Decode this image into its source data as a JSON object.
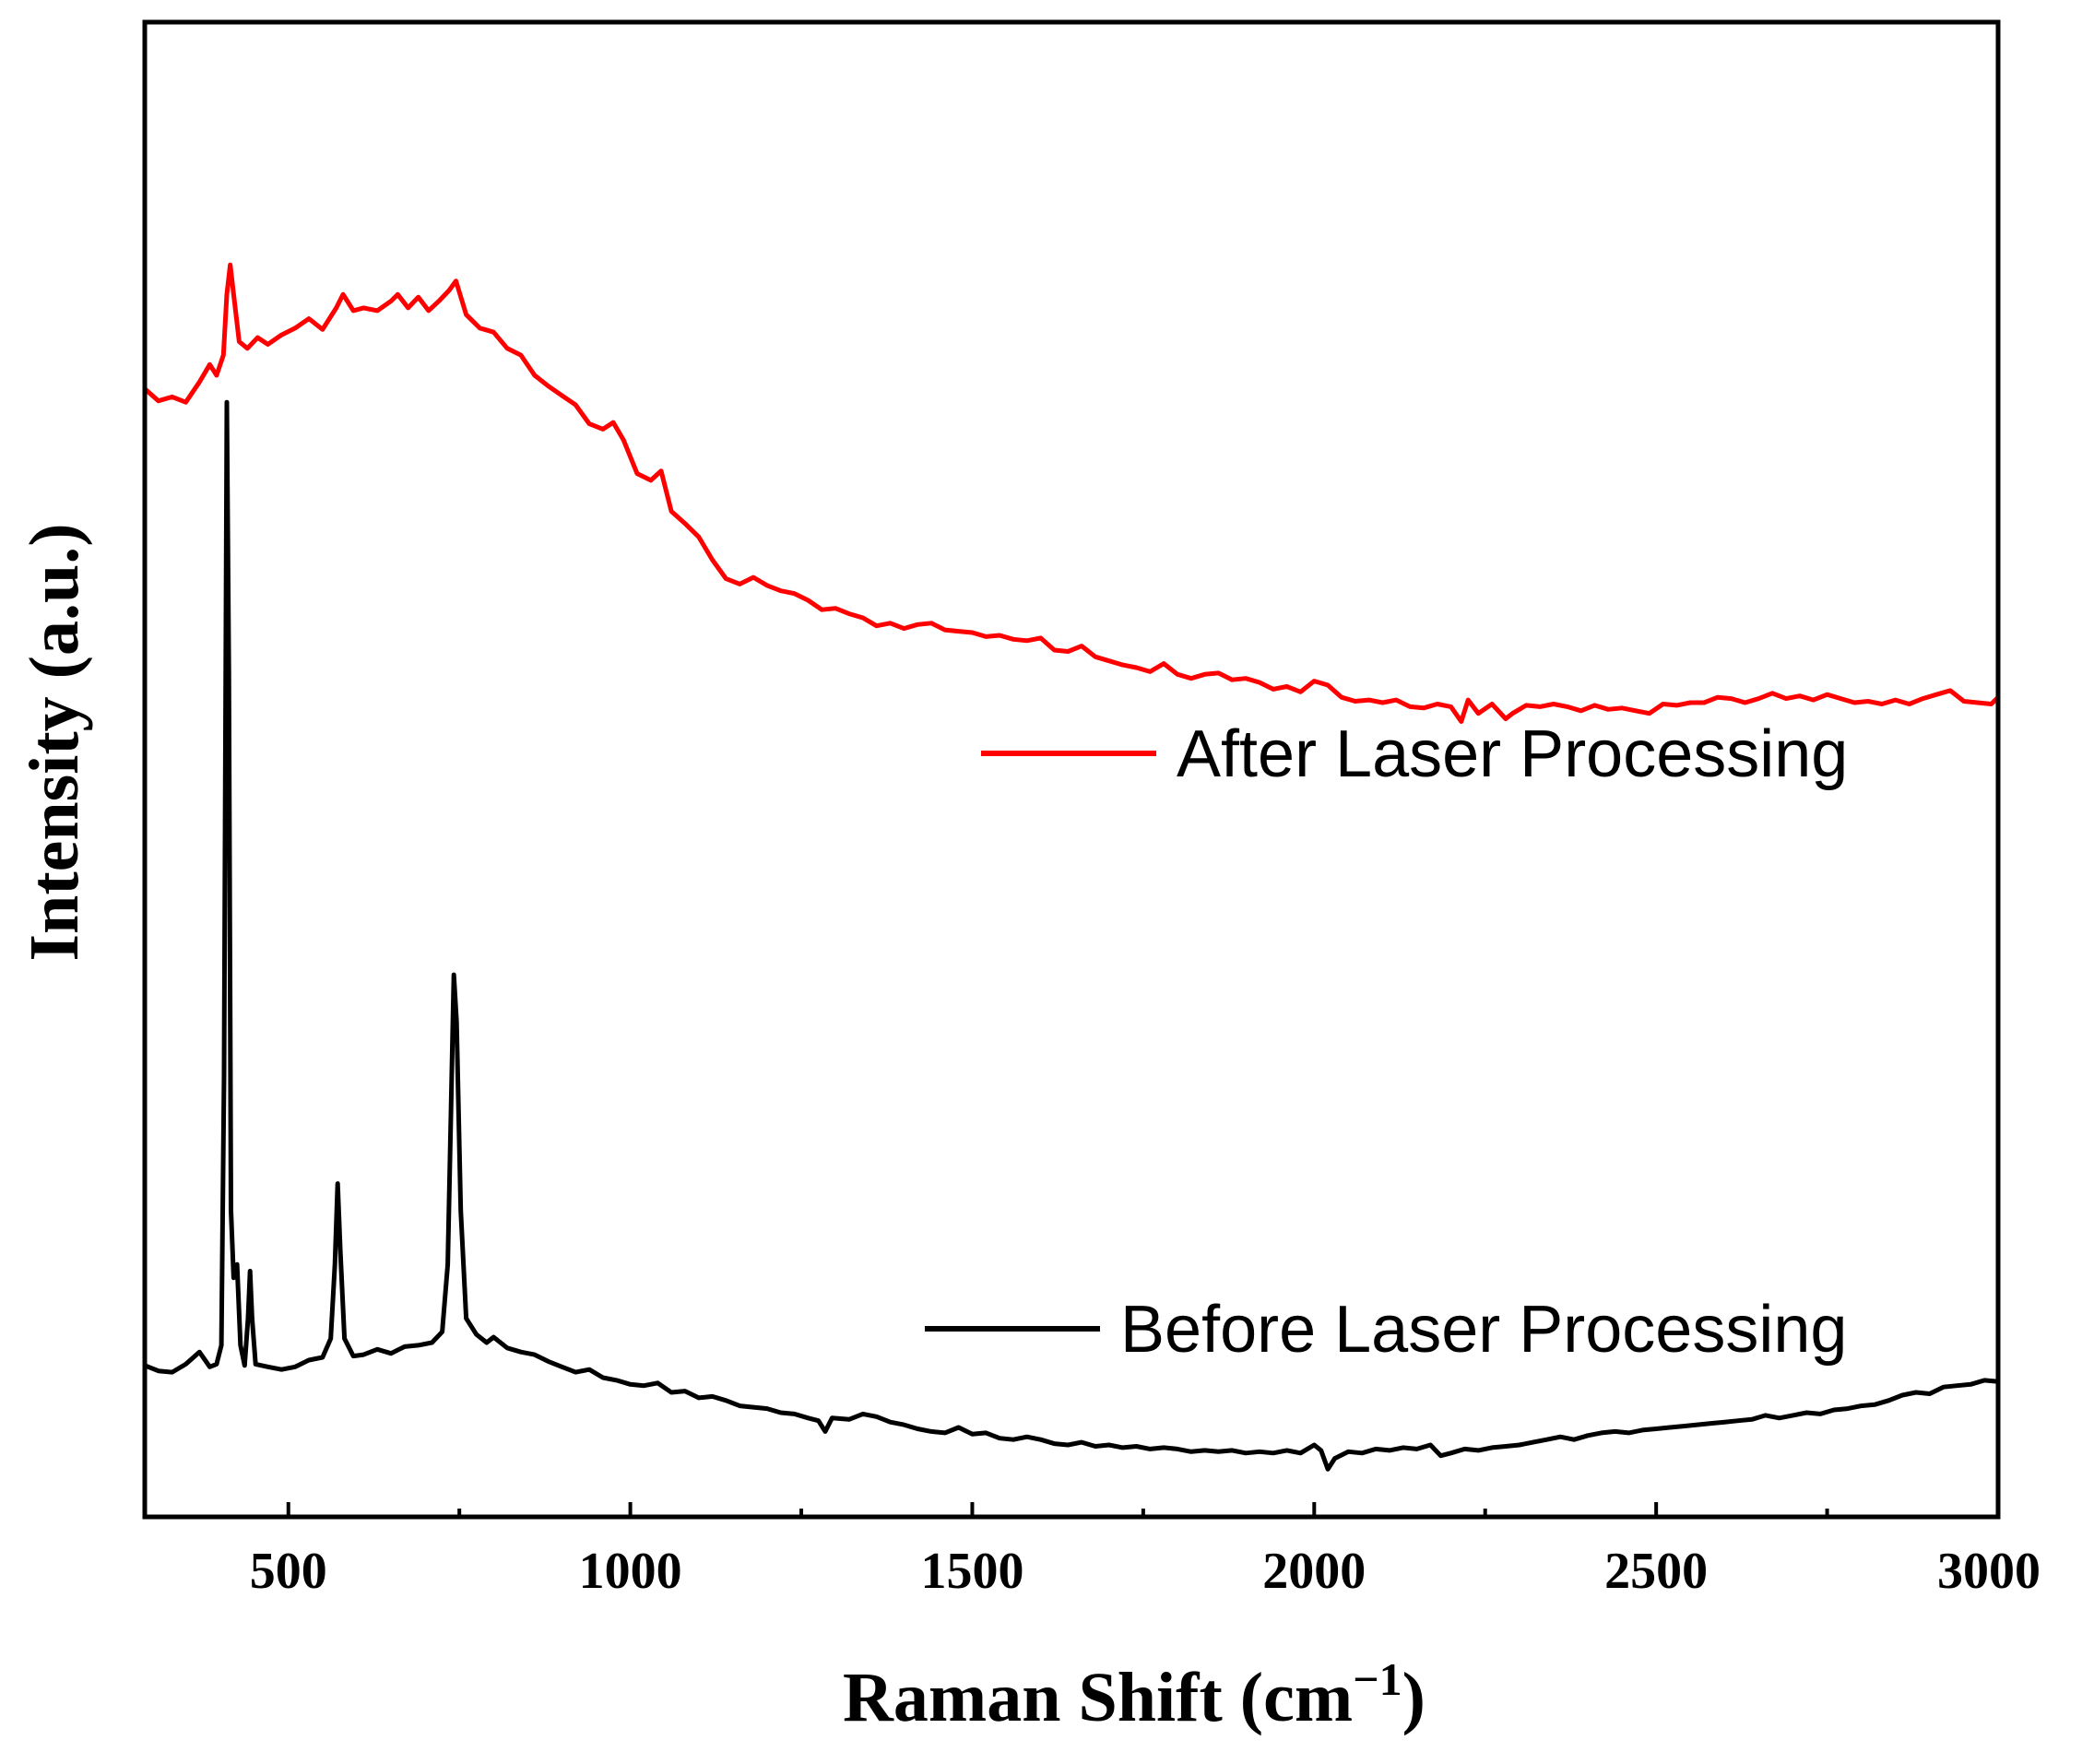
{
  "chart_data": {
    "type": "line",
    "title": "",
    "xlabel": "Raman Shift (cm",
    "xlabel_sup": "−1",
    "xlabel_close": ")",
    "ylabel": "Intensity (a.u.)",
    "xlim": [
      290,
      3000
    ],
    "ylim": [
      0,
      100
    ],
    "xticks": [
      500,
      1000,
      1500,
      2000,
      2500,
      3000
    ],
    "xtick_labels": [
      "500",
      "1000",
      "1500",
      "2000",
      "2500",
      "3000"
    ],
    "minor_xticks": [
      750,
      1250,
      1750,
      2250,
      2750
    ],
    "yticks_shown": false,
    "legend_position": "inside, right of each trace",
    "series": [
      {
        "name": "After Laser Processing",
        "color": "#ff0000",
        "points": [
          [
            290,
            81.0
          ],
          [
            310,
            80.1
          ],
          [
            330,
            80.4
          ],
          [
            350,
            80.0
          ],
          [
            370,
            81.5
          ],
          [
            385,
            82.8
          ],
          [
            395,
            82.0
          ],
          [
            405,
            83.5
          ],
          [
            410,
            88.0
          ],
          [
            415,
            90.2
          ],
          [
            420,
            88.0
          ],
          [
            428,
            84.5
          ],
          [
            440,
            84.0
          ],
          [
            455,
            84.8
          ],
          [
            470,
            84.3
          ],
          [
            490,
            85.0
          ],
          [
            510,
            85.5
          ],
          [
            530,
            86.2
          ],
          [
            550,
            85.4
          ],
          [
            570,
            87.0
          ],
          [
            580,
            88.0
          ],
          [
            595,
            86.8
          ],
          [
            610,
            87.0
          ],
          [
            630,
            86.8
          ],
          [
            650,
            87.5
          ],
          [
            660,
            88.0
          ],
          [
            675,
            87.0
          ],
          [
            690,
            87.8
          ],
          [
            705,
            86.8
          ],
          [
            720,
            87.5
          ],
          [
            735,
            88.3
          ],
          [
            745,
            89.0
          ],
          [
            760,
            86.5
          ],
          [
            780,
            85.5
          ],
          [
            800,
            85.2
          ],
          [
            820,
            84.0
          ],
          [
            840,
            83.5
          ],
          [
            860,
            82.0
          ],
          [
            880,
            81.2
          ],
          [
            900,
            80.5
          ],
          [
            920,
            79.8
          ],
          [
            940,
            78.4
          ],
          [
            960,
            78.0
          ],
          [
            975,
            78.5
          ],
          [
            990,
            77.2
          ],
          [
            1010,
            74.7
          ],
          [
            1030,
            74.2
          ],
          [
            1045,
            74.9
          ],
          [
            1060,
            71.9
          ],
          [
            1080,
            71.0
          ],
          [
            1100,
            70.0
          ],
          [
            1120,
            68.3
          ],
          [
            1140,
            66.9
          ],
          [
            1160,
            66.5
          ],
          [
            1180,
            67.0
          ],
          [
            1200,
            66.4
          ],
          [
            1220,
            66.0
          ],
          [
            1240,
            65.8
          ],
          [
            1260,
            65.3
          ],
          [
            1280,
            64.6
          ],
          [
            1300,
            64.7
          ],
          [
            1320,
            64.3
          ],
          [
            1340,
            64.0
          ],
          [
            1360,
            63.4
          ],
          [
            1380,
            63.6
          ],
          [
            1400,
            63.2
          ],
          [
            1420,
            63.5
          ],
          [
            1440,
            63.6
          ],
          [
            1460,
            63.1
          ],
          [
            1480,
            63.0
          ],
          [
            1500,
            62.9
          ],
          [
            1520,
            62.6
          ],
          [
            1540,
            62.7
          ],
          [
            1560,
            62.4
          ],
          [
            1580,
            62.3
          ],
          [
            1600,
            62.5
          ],
          [
            1620,
            61.6
          ],
          [
            1640,
            61.5
          ],
          [
            1660,
            61.9
          ],
          [
            1680,
            61.1
          ],
          [
            1700,
            60.8
          ],
          [
            1720,
            60.5
          ],
          [
            1740,
            60.3
          ],
          [
            1760,
            60.0
          ],
          [
            1780,
            60.6
          ],
          [
            1800,
            59.8
          ],
          [
            1820,
            59.5
          ],
          [
            1840,
            59.8
          ],
          [
            1860,
            59.9
          ],
          [
            1880,
            59.4
          ],
          [
            1900,
            59.5
          ],
          [
            1920,
            59.2
          ],
          [
            1940,
            58.7
          ],
          [
            1960,
            58.9
          ],
          [
            1980,
            58.5
          ],
          [
            2000,
            59.3
          ],
          [
            2020,
            59.0
          ],
          [
            2040,
            58.1
          ],
          [
            2060,
            57.8
          ],
          [
            2080,
            57.9
          ],
          [
            2100,
            57.7
          ],
          [
            2120,
            57.9
          ],
          [
            2140,
            57.4
          ],
          [
            2160,
            57.3
          ],
          [
            2180,
            57.6
          ],
          [
            2200,
            57.4
          ],
          [
            2215,
            56.3
          ],
          [
            2225,
            57.9
          ],
          [
            2240,
            56.9
          ],
          [
            2260,
            57.6
          ],
          [
            2280,
            56.5
          ],
          [
            2290,
            56.9
          ],
          [
            2310,
            57.5
          ],
          [
            2330,
            57.4
          ],
          [
            2350,
            57.6
          ],
          [
            2370,
            57.4
          ],
          [
            2390,
            57.1
          ],
          [
            2410,
            57.5
          ],
          [
            2430,
            57.2
          ],
          [
            2450,
            57.3
          ],
          [
            2470,
            57.1
          ],
          [
            2490,
            56.9
          ],
          [
            2510,
            57.6
          ],
          [
            2530,
            57.5
          ],
          [
            2550,
            57.7
          ],
          [
            2570,
            57.7
          ],
          [
            2590,
            58.1
          ],
          [
            2610,
            58.0
          ],
          [
            2630,
            57.7
          ],
          [
            2650,
            58.0
          ],
          [
            2670,
            58.4
          ],
          [
            2690,
            58.0
          ],
          [
            2710,
            58.2
          ],
          [
            2730,
            57.9
          ],
          [
            2750,
            58.3
          ],
          [
            2770,
            58.0
          ],
          [
            2790,
            57.7
          ],
          [
            2810,
            57.8
          ],
          [
            2830,
            57.6
          ],
          [
            2850,
            57.9
          ],
          [
            2870,
            57.6
          ],
          [
            2890,
            58.0
          ],
          [
            2910,
            58.3
          ],
          [
            2930,
            58.6
          ],
          [
            2950,
            57.8
          ],
          [
            2970,
            57.7
          ],
          [
            2990,
            57.6
          ],
          [
            3000,
            58.1
          ]
        ]
      },
      {
        "name": "Before Laser Processing",
        "color": "#000000",
        "points": [
          [
            290,
            8.5
          ],
          [
            310,
            8.1
          ],
          [
            330,
            8.0
          ],
          [
            350,
            8.6
          ],
          [
            370,
            9.5
          ],
          [
            385,
            8.4
          ],
          [
            395,
            8.6
          ],
          [
            402,
            10.0
          ],
          [
            406,
            30.0
          ],
          [
            410,
            80.0
          ],
          [
            413,
            60.0
          ],
          [
            416,
            20.0
          ],
          [
            420,
            15.0
          ],
          [
            425,
            16.0
          ],
          [
            430,
            10.0
          ],
          [
            436,
            8.5
          ],
          [
            441,
            12.0
          ],
          [
            444,
            15.5
          ],
          [
            447,
            12.0
          ],
          [
            452,
            8.6
          ],
          [
            470,
            8.4
          ],
          [
            490,
            8.2
          ],
          [
            510,
            8.4
          ],
          [
            530,
            8.9
          ],
          [
            550,
            9.1
          ],
          [
            562,
            10.5
          ],
          [
            568,
            16.0
          ],
          [
            572,
            22.0
          ],
          [
            576,
            17.0
          ],
          [
            582,
            10.5
          ],
          [
            595,
            9.2
          ],
          [
            610,
            9.3
          ],
          [
            630,
            9.7
          ],
          [
            650,
            9.4
          ],
          [
            670,
            9.9
          ],
          [
            690,
            10.0
          ],
          [
            710,
            10.2
          ],
          [
            725,
            11.0
          ],
          [
            733,
            16.0
          ],
          [
            738,
            28.0
          ],
          [
            742,
            37.5
          ],
          [
            746,
            34.0
          ],
          [
            752,
            20.0
          ],
          [
            760,
            12.0
          ],
          [
            775,
            10.8
          ],
          [
            790,
            10.2
          ],
          [
            800,
            10.6
          ],
          [
            820,
            9.8
          ],
          [
            840,
            9.5
          ],
          [
            860,
            9.3
          ],
          [
            880,
            8.8
          ],
          [
            900,
            8.4
          ],
          [
            920,
            8.0
          ],
          [
            940,
            8.2
          ],
          [
            960,
            7.6
          ],
          [
            980,
            7.4
          ],
          [
            1000,
            7.1
          ],
          [
            1020,
            7.0
          ],
          [
            1040,
            7.2
          ],
          [
            1060,
            6.5
          ],
          [
            1080,
            6.6
          ],
          [
            1100,
            6.1
          ],
          [
            1120,
            6.2
          ],
          [
            1140,
            5.9
          ],
          [
            1160,
            5.5
          ],
          [
            1180,
            5.4
          ],
          [
            1200,
            5.3
          ],
          [
            1220,
            5.0
          ],
          [
            1240,
            4.9
          ],
          [
            1260,
            4.6
          ],
          [
            1275,
            4.4
          ],
          [
            1285,
            3.6
          ],
          [
            1295,
            4.6
          ],
          [
            1320,
            4.5
          ],
          [
            1340,
            4.9
          ],
          [
            1360,
            4.7
          ],
          [
            1380,
            4.3
          ],
          [
            1400,
            4.1
          ],
          [
            1420,
            3.8
          ],
          [
            1440,
            3.6
          ],
          [
            1460,
            3.5
          ],
          [
            1480,
            3.9
          ],
          [
            1500,
            3.4
          ],
          [
            1520,
            3.5
          ],
          [
            1540,
            3.1
          ],
          [
            1560,
            3.0
          ],
          [
            1580,
            3.2
          ],
          [
            1600,
            3.0
          ],
          [
            1620,
            2.7
          ],
          [
            1640,
            2.6
          ],
          [
            1660,
            2.8
          ],
          [
            1680,
            2.5
          ],
          [
            1700,
            2.6
          ],
          [
            1720,
            2.4
          ],
          [
            1740,
            2.5
          ],
          [
            1760,
            2.3
          ],
          [
            1780,
            2.4
          ],
          [
            1800,
            2.3
          ],
          [
            1820,
            2.1
          ],
          [
            1840,
            2.2
          ],
          [
            1860,
            2.1
          ],
          [
            1880,
            2.2
          ],
          [
            1900,
            2.0
          ],
          [
            1920,
            2.1
          ],
          [
            1940,
            2.0
          ],
          [
            1960,
            2.2
          ],
          [
            1980,
            2.0
          ],
          [
            2000,
            2.6
          ],
          [
            2010,
            2.2
          ],
          [
            2020,
            0.8
          ],
          [
            2030,
            1.6
          ],
          [
            2050,
            2.1
          ],
          [
            2070,
            2.0
          ],
          [
            2090,
            2.3
          ],
          [
            2110,
            2.2
          ],
          [
            2130,
            2.4
          ],
          [
            2150,
            2.3
          ],
          [
            2170,
            2.6
          ],
          [
            2185,
            1.8
          ],
          [
            2200,
            2.0
          ],
          [
            2220,
            2.3
          ],
          [
            2240,
            2.2
          ],
          [
            2260,
            2.4
          ],
          [
            2280,
            2.5
          ],
          [
            2300,
            2.6
          ],
          [
            2320,
            2.8
          ],
          [
            2340,
            3.0
          ],
          [
            2360,
            3.2
          ],
          [
            2380,
            3.0
          ],
          [
            2400,
            3.3
          ],
          [
            2420,
            3.5
          ],
          [
            2440,
            3.6
          ],
          [
            2460,
            3.5
          ],
          [
            2480,
            3.7
          ],
          [
            2500,
            3.8
          ],
          [
            2520,
            3.9
          ],
          [
            2540,
            4.0
          ],
          [
            2560,
            4.1
          ],
          [
            2580,
            4.2
          ],
          [
            2600,
            4.3
          ],
          [
            2620,
            4.4
          ],
          [
            2640,
            4.5
          ],
          [
            2660,
            4.8
          ],
          [
            2680,
            4.6
          ],
          [
            2700,
            4.8
          ],
          [
            2720,
            5.0
          ],
          [
            2740,
            4.9
          ],
          [
            2760,
            5.2
          ],
          [
            2780,
            5.3
          ],
          [
            2800,
            5.5
          ],
          [
            2820,
            5.6
          ],
          [
            2840,
            5.9
          ],
          [
            2860,
            6.3
          ],
          [
            2880,
            6.5
          ],
          [
            2900,
            6.4
          ],
          [
            2920,
            6.9
          ],
          [
            2940,
            7.0
          ],
          [
            2960,
            7.1
          ],
          [
            2980,
            7.4
          ],
          [
            3000,
            7.3
          ]
        ]
      }
    ]
  }
}
